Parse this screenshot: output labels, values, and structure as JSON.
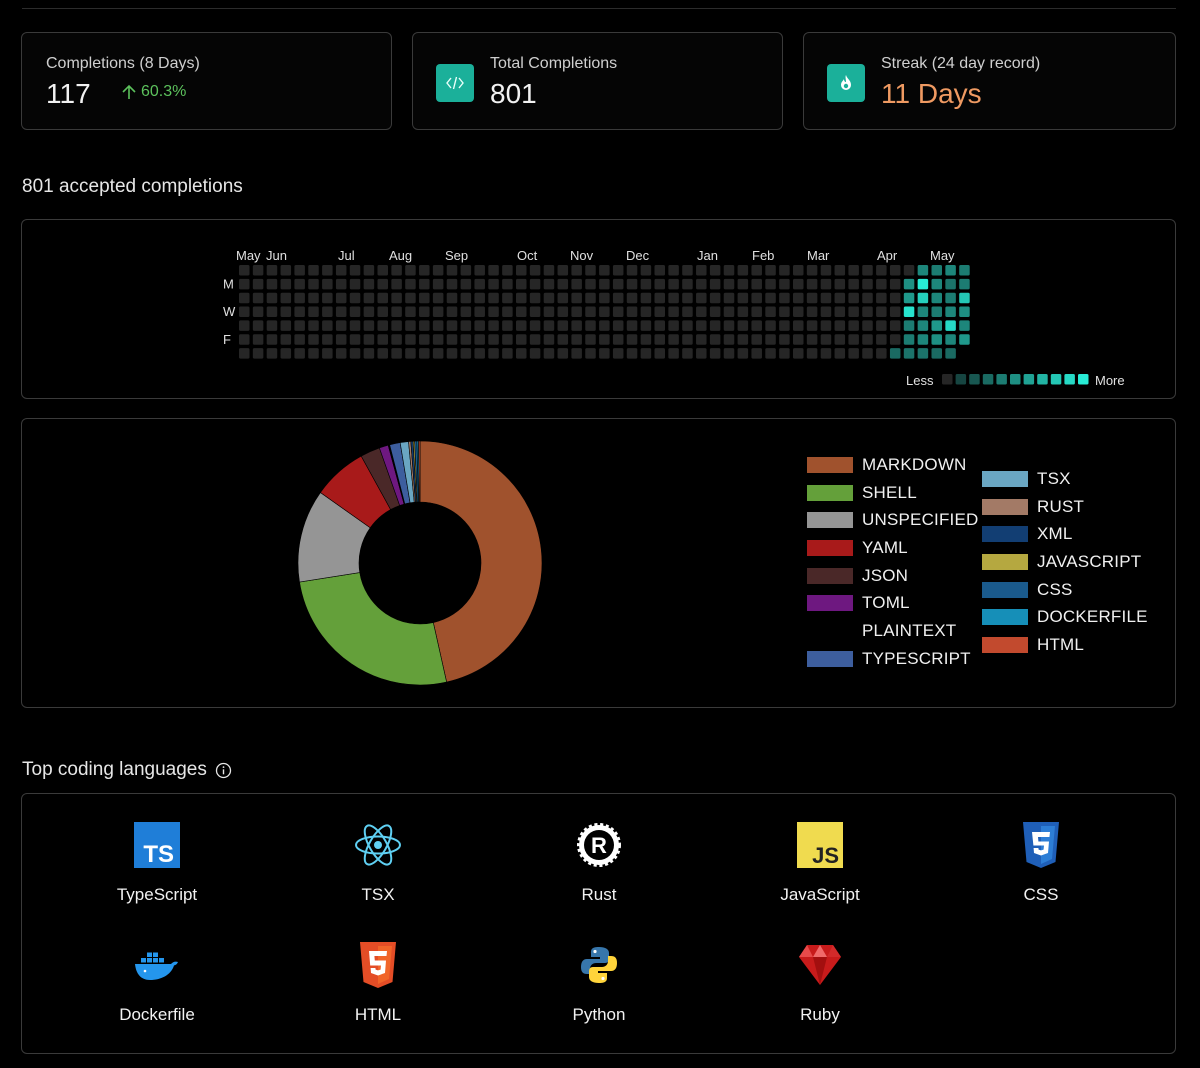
{
  "stats": {
    "completions_label": "Completions (8 Days)",
    "completions_value": "117",
    "completions_delta": "60.3%",
    "total_label": "Total Completions",
    "total_value": "801",
    "streak_label": "Streak (24 day record)",
    "streak_value": "11 Days"
  },
  "activity": {
    "heading": "801 accepted completions",
    "months": [
      "May",
      "Jun",
      "Jul",
      "Aug",
      "Sep",
      "Oct",
      "Nov",
      "Dec",
      "Jan",
      "Feb",
      "Mar",
      "Apr",
      "May"
    ],
    "weekday_labels": [
      "M",
      "W",
      "F"
    ],
    "less_label": "Less",
    "more_label": "More"
  },
  "chart_data": {
    "type": "pie",
    "donut": true,
    "categories": [
      "MARKDOWN",
      "SHELL",
      "UNSPECIFIED",
      "YAML",
      "JSON",
      "TOML",
      "PLAINTEXT",
      "TYPESCRIPT",
      "TSX",
      "RUST",
      "XML",
      "JAVASCRIPT",
      "CSS",
      "DOCKERFILE",
      "HTML"
    ],
    "values": [
      46.5,
      26,
      12.3,
      7.2,
      2.6,
      1.2,
      0.2,
      1.4,
      1.1,
      0.3,
      0.3,
      0.2,
      0.3,
      0.2,
      0.2
    ],
    "colors": [
      "#a0522d",
      "#64a03a",
      "#959595",
      "#a81a1a",
      "#4a2828",
      "#6e1880",
      "#000000",
      "#3d5e9e",
      "#6aa6c2",
      "#a37a66",
      "#123e73",
      "#b5a840",
      "#1a5a8c",
      "#168fb8",
      "#c24a2e"
    ],
    "legend_position": "right"
  },
  "languages": {
    "heading": "Top coding languages",
    "items": [
      {
        "name": "TypeScript",
        "icon": "typescript-icon"
      },
      {
        "name": "TSX",
        "icon": "react-icon"
      },
      {
        "name": "Rust",
        "icon": "rust-icon"
      },
      {
        "name": "JavaScript",
        "icon": "javascript-icon"
      },
      {
        "name": "CSS",
        "icon": "css3-icon"
      },
      {
        "name": "Dockerfile",
        "icon": "docker-icon"
      },
      {
        "name": "HTML",
        "icon": "html5-icon"
      },
      {
        "name": "Python",
        "icon": "python-icon"
      },
      {
        "name": "Ruby",
        "icon": "ruby-icon"
      }
    ]
  }
}
